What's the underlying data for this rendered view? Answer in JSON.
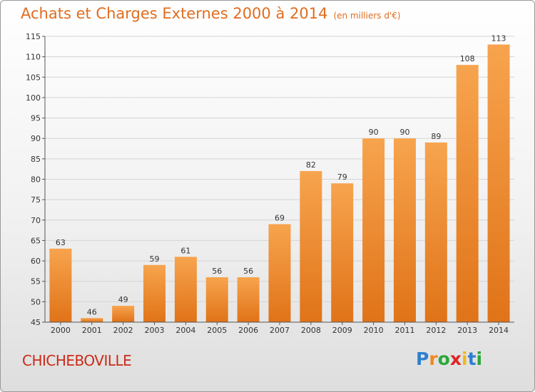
{
  "chart_data": {
    "type": "bar",
    "title": "Achats et Charges Externes 2000 à 2014",
    "subtitle": "(en milliers d'€)",
    "categories": [
      "2000",
      "2001",
      "2002",
      "2003",
      "2004",
      "2005",
      "2006",
      "2007",
      "2008",
      "2009",
      "2010",
      "2011",
      "2012",
      "2013",
      "2014"
    ],
    "values": [
      63,
      46,
      49,
      59,
      61,
      56,
      56,
      69,
      82,
      79,
      90,
      90,
      89,
      108,
      113
    ],
    "ylim": [
      45,
      115
    ],
    "yticks": [
      45,
      50,
      55,
      60,
      65,
      70,
      75,
      80,
      85,
      90,
      95,
      100,
      105,
      110,
      115
    ],
    "grid": true,
    "xlabel": "",
    "ylabel": "",
    "bar_color": "#f0922f"
  },
  "commune": "CHICHEBOVILLE",
  "logo": {
    "letters": [
      "P",
      "r",
      "o",
      "x",
      "i",
      "t",
      "i"
    ],
    "colors": [
      "#2f7fd0",
      "#f08a1e",
      "#2aa83a",
      "#e02424",
      "#f0b81e",
      "#2f7fd0",
      "#2aa83a"
    ]
  }
}
